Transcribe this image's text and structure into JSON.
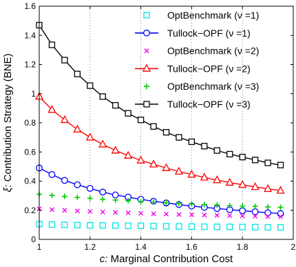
{
  "chart_data": {
    "type": "line",
    "title": "",
    "xlabel_var": "c:",
    "xlabel_text": " Marginal Contribution Cost",
    "ylabel_var": "ξ:",
    "ylabel_text": " Contribution Strategy (BNE)",
    "xlim": [
      1,
      2
    ],
    "ylim": [
      0,
      1.6
    ],
    "xticks": [
      1,
      1.2,
      1.4,
      1.6,
      1.8,
      2
    ],
    "xtick_labels": [
      "1",
      "1.2",
      "1.4",
      "1.6",
      "1.8",
      "2"
    ],
    "yticks": [
      0,
      0.2,
      0.4,
      0.6,
      0.8,
      1,
      1.2,
      1.4,
      1.6
    ],
    "ytick_labels": [
      "0",
      "0.2",
      "0.4",
      "0.6",
      "0.8",
      "1",
      "1.2",
      "1.4",
      "1.6"
    ],
    "grid": "vertical dotted",
    "legend_position": "top-right",
    "x": [
      1.0,
      1.05,
      1.1,
      1.15,
      1.2,
      1.25,
      1.3,
      1.35,
      1.4,
      1.45,
      1.5,
      1.55,
      1.6,
      1.65,
      1.7,
      1.75,
      1.8,
      1.85,
      1.9,
      1.95
    ],
    "series": [
      {
        "name": "OptBenchmark (ν =1)",
        "color": "#00e5e5",
        "marker": "square",
        "line": false,
        "values": [
          0.105,
          0.102,
          0.1,
          0.098,
          0.097,
          0.096,
          0.095,
          0.094,
          0.093,
          0.092,
          0.09,
          0.089,
          0.088,
          0.087,
          0.086,
          0.086,
          0.085,
          0.084,
          0.083,
          0.082
        ]
      },
      {
        "name": "Tullock−OPF (ν =1)",
        "color": "#0000ff",
        "marker": "circle",
        "line": true,
        "values": [
          0.49,
          0.445,
          0.405,
          0.375,
          0.35,
          0.325,
          0.305,
          0.29,
          0.275,
          0.262,
          0.25,
          0.239,
          0.229,
          0.22,
          0.212,
          0.204,
          0.197,
          0.19,
          0.183,
          0.177
        ]
      },
      {
        "name": "OptBenchmark (ν =2)",
        "color": "#ee00ee",
        "marker": "x",
        "line": false,
        "values": [
          0.21,
          0.205,
          0.2,
          0.195,
          0.192,
          0.188,
          0.185,
          0.182,
          0.179,
          0.176,
          0.174,
          0.171,
          0.169,
          0.167,
          0.165,
          0.163,
          0.161,
          0.159,
          0.157,
          0.156
        ]
      },
      {
        "name": "Tullock−OPF (ν =2)",
        "color": "#ff0000",
        "marker": "triangle",
        "line": true,
        "values": [
          0.98,
          0.89,
          0.82,
          0.755,
          0.7,
          0.652,
          0.61,
          0.575,
          0.542,
          0.515,
          0.49,
          0.466,
          0.445,
          0.425,
          0.407,
          0.39,
          0.375,
          0.36,
          0.347,
          0.335
        ]
      },
      {
        "name": "OptBenchmark (ν =3)",
        "color": "#00cc00",
        "marker": "plus",
        "line": false,
        "values": [
          0.31,
          0.302,
          0.295,
          0.288,
          0.282,
          0.276,
          0.27,
          0.265,
          0.26,
          0.256,
          0.251,
          0.247,
          0.243,
          0.239,
          0.236,
          0.232,
          0.229,
          0.226,
          0.223,
          0.22
        ]
      },
      {
        "name": "Tullock−OPF (ν =3)",
        "color": "#000000",
        "marker": "square",
        "line": true,
        "values": [
          1.47,
          1.335,
          1.23,
          1.135,
          1.055,
          0.98,
          0.92,
          0.865,
          0.82,
          0.775,
          0.735,
          0.7,
          0.67,
          0.64,
          0.61,
          0.585,
          0.565,
          0.545,
          0.525,
          0.51
        ]
      }
    ]
  }
}
